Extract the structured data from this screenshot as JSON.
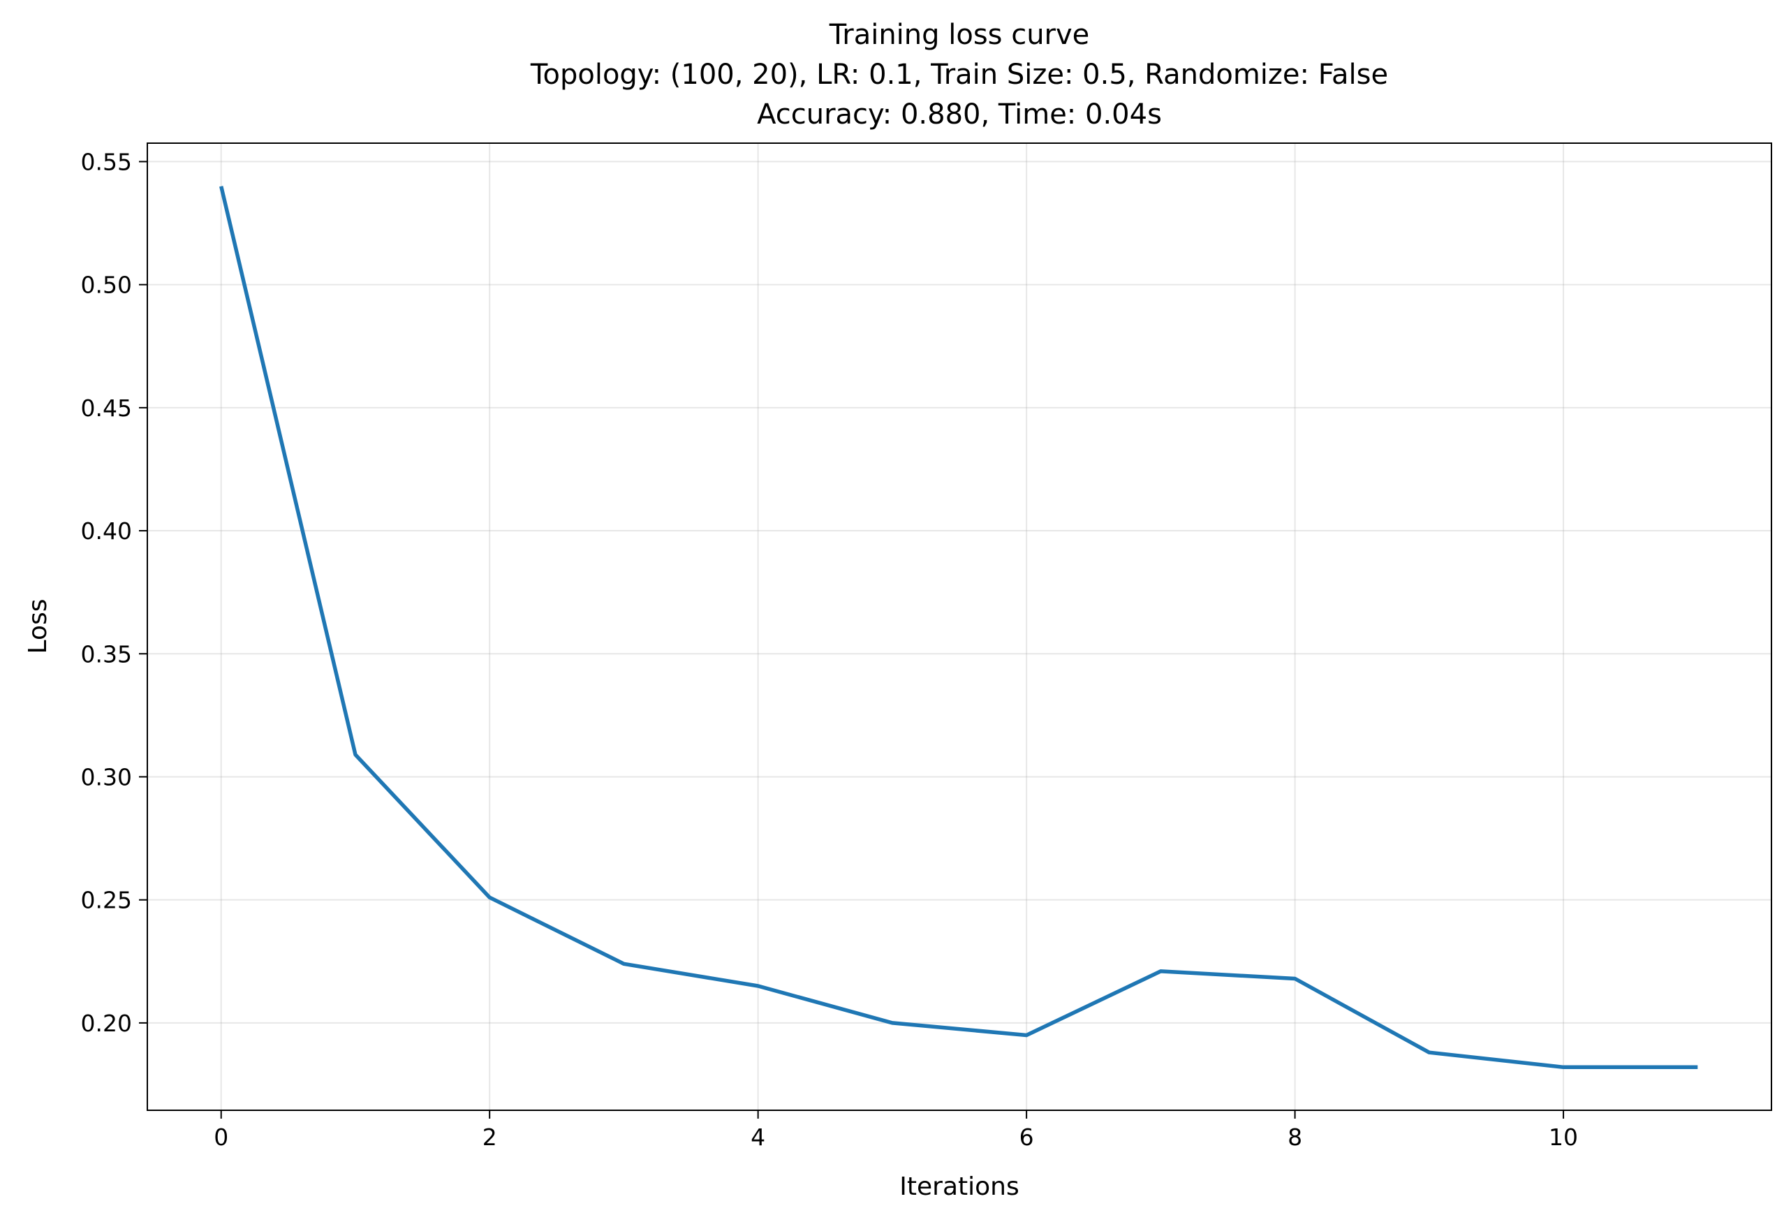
{
  "chart_data": {
    "type": "line",
    "title_lines": [
      "Training loss curve",
      "Topology: (100, 20), LR: 0.1, Train Size: 0.5, Randomize: False",
      "Accuracy: 0.880, Time: 0.04s"
    ],
    "xlabel": "Iterations",
    "ylabel": "Loss",
    "xlim": [
      -0.55,
      11.55
    ],
    "ylim": [
      0.1645,
      0.5575
    ],
    "x_ticks": [
      0,
      2,
      4,
      6,
      8,
      10
    ],
    "y_ticks": [
      0.2,
      0.25,
      0.3,
      0.35,
      0.4,
      0.45,
      0.5,
      0.55
    ],
    "x_tick_labels": [
      "0",
      "2",
      "4",
      "6",
      "8",
      "10"
    ],
    "y_tick_labels": [
      "0.20",
      "0.25",
      "0.30",
      "0.35",
      "0.40",
      "0.45",
      "0.50",
      "0.55"
    ],
    "grid": true,
    "series": [
      {
        "color": "#1f77b4",
        "x": [
          0,
          1,
          2,
          3,
          4,
          5,
          6,
          7,
          8,
          9,
          10,
          11
        ],
        "y": [
          0.54,
          0.309,
          0.251,
          0.224,
          0.215,
          0.2,
          0.195,
          0.221,
          0.218,
          0.188,
          0.182,
          0.182
        ]
      }
    ]
  }
}
